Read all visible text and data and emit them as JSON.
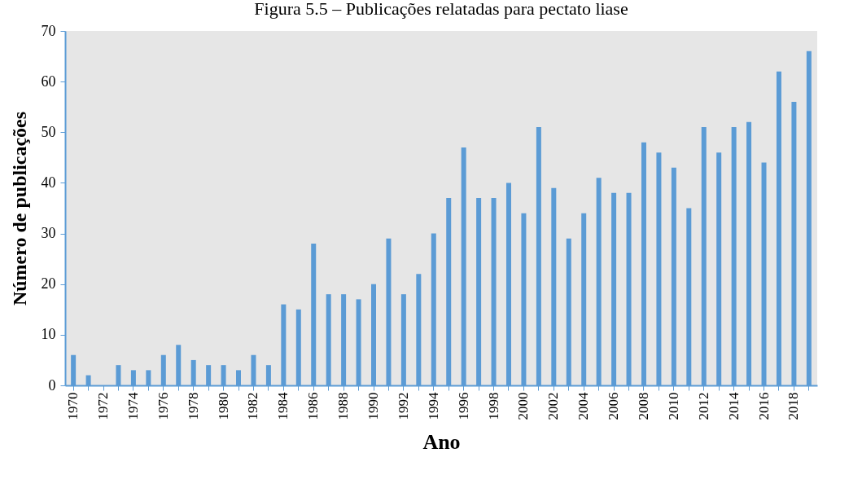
{
  "chart_data": {
    "type": "bar",
    "title": "Figura 5.5 – Publicações relatadas para pectato liase",
    "xlabel": "Ano",
    "ylabel": "Número de publicações",
    "categories": [
      "1970",
      null,
      "1972",
      null,
      "1974",
      null,
      "1976",
      null,
      "1978",
      null,
      "1980",
      null,
      "1982",
      null,
      "1984",
      null,
      "1986",
      null,
      "1988",
      null,
      "1990",
      null,
      "1992",
      null,
      "1994",
      null,
      "1996",
      null,
      "1998",
      null,
      "2000",
      null,
      "2002",
      null,
      "2004",
      null,
      "2006",
      null,
      "2008",
      null,
      "2010",
      null,
      "2012",
      null,
      "2014",
      null,
      "2016",
      null,
      "2018",
      null
    ],
    "values": [
      6,
      2,
      0,
      4,
      3,
      3,
      6,
      8,
      5,
      4,
      4,
      3,
      6,
      4,
      16,
      15,
      28,
      18,
      18,
      17,
      20,
      29,
      18,
      22,
      30,
      37,
      47,
      37,
      37,
      40,
      34,
      51,
      39,
      29,
      34,
      41,
      38,
      38,
      48,
      46,
      43,
      35,
      51,
      46,
      51,
      52,
      44,
      62,
      56,
      66
    ],
    "color": "#5b9bd5",
    "ylim": [
      0,
      70
    ],
    "yticks": [
      0,
      10,
      20,
      30,
      40,
      50,
      60,
      70
    ],
    "grid": false
  }
}
